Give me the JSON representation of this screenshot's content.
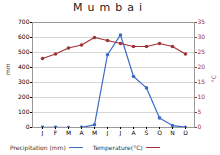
{
  "chart_data": {
    "type": "line",
    "title": "Mumbai",
    "categories": [
      "J",
      "F",
      "M",
      "A",
      "M",
      "J",
      "J",
      "A",
      "S",
      "O",
      "N",
      "D"
    ],
    "series": [
      {
        "name": "Precipitation (mm)",
        "color": "#3d6cc4",
        "marker": "circle",
        "values": [
          1,
          1,
          0,
          1,
          18,
          485,
          617,
          340,
          264,
          64,
          13,
          2
        ]
      },
      {
        "name": "Temperature(°C)",
        "color": "#a03434",
        "marker": "circle",
        "axis": "y2",
        "values": [
          23,
          24.5,
          26.5,
          27.5,
          30,
          29,
          28,
          27,
          27,
          28,
          27,
          24.5
        ]
      }
    ],
    "ylabel": "mm",
    "y2label": "°C",
    "ylim": [
      0,
      700
    ],
    "yticks": [
      0,
      100,
      200,
      300,
      400,
      500,
      600,
      700
    ],
    "y2lim": [
      0,
      35
    ],
    "y2ticks": [
      0,
      5,
      10,
      15,
      20,
      25,
      30,
      35
    ],
    "grid": true,
    "legend": "bottom"
  }
}
